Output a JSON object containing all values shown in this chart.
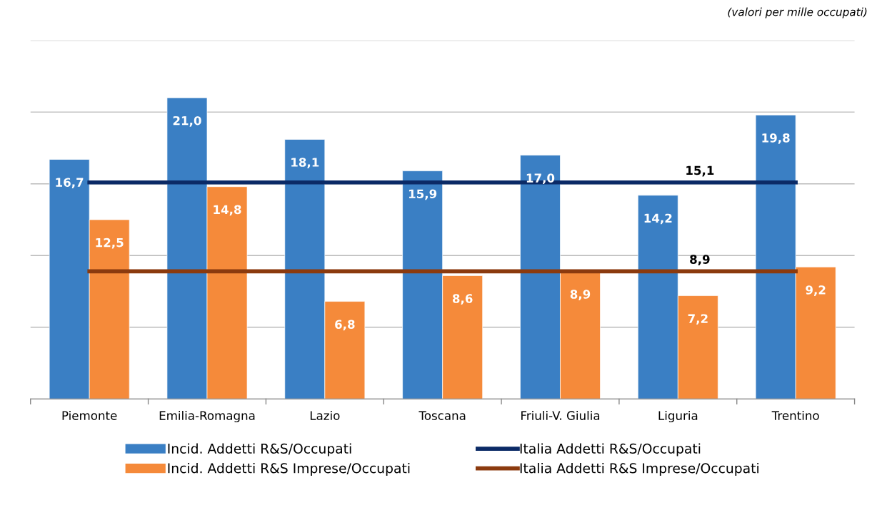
{
  "chart_data": {
    "type": "bar",
    "categories": [
      "Piemonte",
      "Emilia-Romagna",
      "Lazio",
      "Toscana",
      "Friuli-V. Giulia",
      "Liguria",
      "Trentino"
    ],
    "series": [
      {
        "name": "Incid. Addetti R&S/Occupati",
        "color": "#3a7fc4",
        "values": [
          16.7,
          21.0,
          18.1,
          15.9,
          17.0,
          14.2,
          19.8
        ],
        "value_labels": [
          "16,7",
          "21,0",
          "18,1",
          "15,9",
          "17,0",
          "14,2",
          "19,8"
        ]
      },
      {
        "name": "Incid. Addetti R&S Imprese/Occupati",
        "color": "#f58a3a",
        "values": [
          12.5,
          14.8,
          6.8,
          8.6,
          8.9,
          7.2,
          9.2
        ],
        "value_labels": [
          "12,5",
          "14,8",
          "6,8",
          "8,6",
          "8,9",
          "7,2",
          "9,2"
        ]
      },
      {
        "name": "Italia Addetti R&S/Occupati",
        "type": "line",
        "color": "#0b2a66",
        "values": [
          15.1,
          15.1,
          15.1,
          15.1,
          15.1,
          15.1,
          15.1
        ],
        "value_labels": [
          null,
          null,
          null,
          null,
          null,
          "15,1",
          null
        ]
      },
      {
        "name": "Italia Addetti R&S Imprese/Occupati",
        "type": "line",
        "color": "#8b3a0e",
        "values": [
          8.9,
          8.9,
          8.9,
          8.9,
          8.9,
          8.9,
          8.9
        ],
        "value_labels": [
          null,
          null,
          null,
          null,
          null,
          "8,9",
          null
        ]
      }
    ],
    "ylim": [
      0,
      25
    ],
    "yticks": [
      {
        "value": 0,
        "label": null
      },
      {
        "value": 5,
        "label": null
      },
      {
        "value": 10,
        "label": null
      },
      {
        "value": 15,
        "label": null
      },
      {
        "value": 20,
        "label": null
      },
      {
        "value": 25,
        "label": null
      }
    ],
    "tick_labels": "x",
    "grid": "y",
    "legend": "bottom",
    "annotations": [
      "(valori per mille occupati)"
    ]
  }
}
